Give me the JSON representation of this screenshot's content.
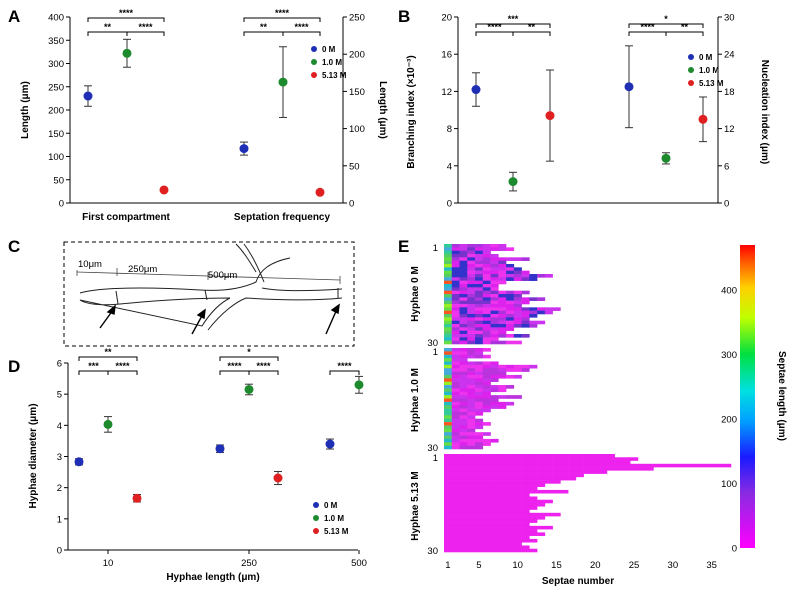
{
  "chart_data": [
    {
      "panel": "A",
      "type": "scatter",
      "categories": [
        "First compartment",
        "Septation frequency"
      ],
      "ylabel": "Length (μm)",
      "ylim": [
        0,
        400
      ],
      "yticks": [
        0,
        50,
        100,
        150,
        200,
        250,
        300,
        350,
        400
      ],
      "y2label": "Length (μm)",
      "y2lim": [
        0,
        250
      ],
      "y2ticks": [
        0,
        50,
        100,
        150,
        200,
        250
      ],
      "legend": [
        "0 M",
        "1.0 M",
        "5.13 M"
      ],
      "series": [
        {
          "name": "0 M",
          "color": "#1f2fb5",
          "values": [
            230,
            117
          ],
          "errors": [
            22,
            14
          ]
        },
        {
          "name": "1.0 M",
          "color": "#1e8a2e",
          "values": [
            322,
            260
          ],
          "errors": [
            30,
            76
          ]
        },
        {
          "name": "5.13 M",
          "color": "#e02020",
          "values": [
            28,
            23
          ],
          "errors": [
            0,
            0
          ]
        }
      ],
      "significance": [
        {
          "group": 0,
          "from": 0,
          "to": 1,
          "label": "**"
        },
        {
          "group": 0,
          "from": 1,
          "to": 2,
          "label": "****"
        },
        {
          "group": 0,
          "from": 0,
          "to": 2,
          "label": "****"
        },
        {
          "group": 1,
          "from": 0,
          "to": 1,
          "label": "**"
        },
        {
          "group": 1,
          "from": 1,
          "to": 2,
          "label": "****"
        },
        {
          "group": 1,
          "from": 0,
          "to": 2,
          "label": "****"
        }
      ]
    },
    {
      "panel": "B",
      "type": "scatter",
      "ylabel": "Branching index (×10⁻³)",
      "ylim": [
        0,
        20
      ],
      "yticks": [
        0,
        4,
        8,
        12,
        16,
        20
      ],
      "y2label": "Nucleation index (μm)",
      "y2lim": [
        0,
        30
      ],
      "y2ticks": [
        0,
        6,
        12,
        18,
        24,
        30
      ],
      "legend": [
        "0 M",
        "1.0 M",
        "5.13 M"
      ],
      "series": [
        {
          "name": "0 M",
          "color": "#1f2fb5",
          "values": [
            12.2,
            12.5
          ],
          "errors": [
            1.8,
            4.4
          ]
        },
        {
          "name": "1.0 M",
          "color": "#1e8a2e",
          "values": [
            2.3,
            4.8
          ],
          "errors": [
            1.0,
            0.6
          ]
        },
        {
          "name": "5.13 M",
          "color": "#e02020",
          "values": [
            9.4,
            9.0
          ],
          "errors": [
            4.9,
            2.4
          ]
        }
      ],
      "significance": [
        {
          "group": 0,
          "from": 0,
          "to": 1,
          "label": "****"
        },
        {
          "group": 0,
          "from": 1,
          "to": 2,
          "label": "**"
        },
        {
          "group": 0,
          "from": 0,
          "to": 2,
          "label": "***"
        },
        {
          "group": 1,
          "from": 0,
          "to": 1,
          "label": "****"
        },
        {
          "group": 1,
          "from": 1,
          "to": 2,
          "label": "**"
        },
        {
          "group": 1,
          "from": 0,
          "to": 2,
          "label": "*"
        }
      ]
    },
    {
      "panel": "D",
      "type": "scatter",
      "categories": [
        "10",
        "250",
        "500"
      ],
      "xlabel": "Hyphae length (μm)",
      "ylabel": "Hyphae diameter (μm)",
      "ylim": [
        0,
        6
      ],
      "yticks": [
        0,
        1,
        2,
        3,
        4,
        5,
        6
      ],
      "legend": [
        "0 M",
        "1.0 M",
        "5.13 M"
      ],
      "series": [
        {
          "name": "0 M",
          "color": "#1f2fb5",
          "values": [
            2.83,
            3.25,
            3.4
          ],
          "errors": [
            0.1,
            0.12,
            0.16
          ]
        },
        {
          "name": "1.0 M",
          "color": "#1e8a2e",
          "values": [
            4.03,
            5.15,
            5.3
          ],
          "errors": [
            0.25,
            0.17,
            0.27
          ]
        },
        {
          "name": "5.13 M",
          "color": "#e02020",
          "values": [
            1.66,
            2.31,
            null
          ],
          "errors": [
            0.12,
            0.21,
            null
          ]
        }
      ],
      "significance": [
        {
          "group": 0,
          "from": 0,
          "to": 1,
          "label": "***"
        },
        {
          "group": 0,
          "from": 1,
          "to": 2,
          "label": "****"
        },
        {
          "group": 0,
          "from": 0,
          "to": 2,
          "label": "**"
        },
        {
          "group": 1,
          "from": 0,
          "to": 1,
          "label": "****"
        },
        {
          "group": 1,
          "from": 1,
          "to": 2,
          "label": "****"
        },
        {
          "group": 1,
          "from": 0,
          "to": 2,
          "label": "*"
        },
        {
          "group": 2,
          "from": 0,
          "to": 1,
          "label": "****"
        }
      ]
    },
    {
      "panel": "E",
      "type": "heatmap",
      "xlabel": "Septae number",
      "xticks": [
        1,
        5,
        10,
        15,
        20,
        25,
        30,
        35
      ],
      "xlim": [
        1,
        37
      ],
      "groups": [
        {
          "label": "Hyphae 0 M",
          "rows": 30,
          "row_ticks": [
            1,
            30
          ],
          "row_lengths": [
            8,
            9,
            6,
            7,
            11,
            8,
            9,
            10,
            11,
            14,
            12,
            8,
            7,
            7,
            11,
            10,
            13,
            11,
            10,
            15,
            14,
            12,
            11,
            13,
            12,
            9,
            8,
            11,
            7,
            10
          ]
        },
        {
          "label": "Hyphae 1.0 M",
          "rows": 30,
          "row_ticks": [
            1,
            30
          ],
          "row_lengths": [
            6,
            5,
            6,
            3,
            7,
            12,
            11,
            8,
            10,
            7,
            6,
            9,
            8,
            6,
            10,
            7,
            9,
            8,
            6,
            5,
            4,
            5,
            6,
            5,
            4,
            6,
            5,
            7,
            6,
            5
          ]
        },
        {
          "label": "Hyphae 5.13 M",
          "rows": 30,
          "row_ticks": [
            1,
            30
          ],
          "row_lengths": [
            22,
            25,
            24,
            37,
            27,
            21,
            18,
            17,
            15,
            13,
            12,
            16,
            11,
            12,
            14,
            13,
            12,
            11,
            15,
            13,
            12,
            11,
            14,
            12,
            13,
            11,
            12,
            10,
            11,
            12
          ]
        }
      ],
      "colorbar": {
        "label": "Septae length (μm)",
        "ticks": [
          0,
          100,
          200,
          300,
          400
        ],
        "range": [
          0,
          470
        ]
      }
    }
  ],
  "schematic": {
    "panel": "C",
    "labels": [
      "10μm",
      "250μm",
      "500μm"
    ]
  }
}
